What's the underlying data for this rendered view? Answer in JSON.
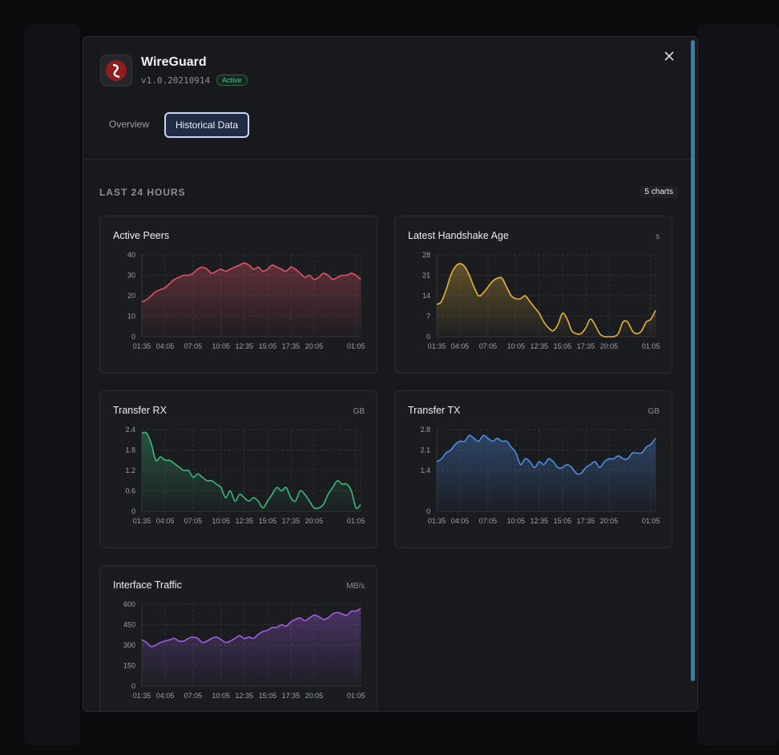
{
  "header": {
    "title": "WireGuard",
    "version": "v1.0.20210914",
    "status": "Active"
  },
  "tabs": [
    "Overview",
    "Historical Data"
  ],
  "section": {
    "title": "LAST 24 HOURS",
    "count": "5 charts"
  },
  "chart_data": [
    {
      "type": "line",
      "title": "Active Peers",
      "color": "#e05563",
      "grid": true,
      "ylim": [
        0,
        40
      ],
      "yticks": [
        0,
        10,
        20,
        30,
        40
      ],
      "categories": [
        "01:35",
        null,
        null,
        null,
        null,
        "04:05",
        null,
        null,
        null,
        null,
        null,
        "07:05",
        null,
        null,
        null,
        null,
        null,
        "10:05",
        null,
        null,
        null,
        null,
        "12:35",
        null,
        null,
        null,
        null,
        "15:05",
        null,
        null,
        null,
        null,
        "17:35",
        null,
        null,
        null,
        null,
        "20:05",
        null,
        null,
        null,
        null,
        null,
        null,
        null,
        null,
        "01:05",
        null
      ],
      "values": [
        17,
        18,
        20,
        22,
        23,
        24,
        26,
        28,
        29,
        30,
        30,
        31,
        33,
        34,
        33,
        31,
        32,
        33,
        32,
        33,
        34,
        35,
        36,
        35,
        33,
        34,
        32,
        33,
        35,
        34,
        33,
        32,
        34,
        33,
        31,
        29,
        30,
        28,
        29,
        31,
        30,
        28,
        29,
        30,
        30,
        31,
        30,
        28
      ]
    },
    {
      "type": "line",
      "title": "Latest Handshake Age",
      "unit": "s",
      "color": "#e6b53a",
      "grid": true,
      "ylim": [
        0,
        28
      ],
      "yticks": [
        0,
        7,
        14,
        21,
        28
      ],
      "categories": [
        "01:35",
        null,
        null,
        null,
        null,
        "04:05",
        null,
        null,
        null,
        null,
        null,
        "07:05",
        null,
        null,
        null,
        null,
        null,
        "10:05",
        null,
        null,
        null,
        null,
        "12:35",
        null,
        null,
        null,
        null,
        "15:05",
        null,
        null,
        null,
        null,
        "17:35",
        null,
        null,
        null,
        null,
        "20:05",
        null,
        null,
        null,
        null,
        null,
        null,
        null,
        null,
        "01:05",
        null
      ],
      "values": [
        11,
        12,
        16,
        21,
        24,
        25,
        24,
        21,
        17,
        14,
        15,
        17,
        19,
        20,
        20,
        17,
        14,
        13,
        13,
        14,
        12,
        10,
        8,
        5,
        3,
        2,
        4,
        8,
        6,
        2,
        1,
        1,
        3,
        6,
        4,
        1,
        0,
        0,
        0,
        1,
        5,
        5,
        2,
        1,
        2,
        5,
        6,
        9
      ]
    },
    {
      "type": "line",
      "title": "Transfer RX",
      "unit": "GB",
      "color": "#3dba7a",
      "grid": true,
      "ylim": [
        0,
        2.4
      ],
      "yticks": [
        0,
        0.6,
        1.2,
        1.8,
        2.4
      ],
      "categories": [
        "01:35",
        null,
        null,
        null,
        null,
        "04:05",
        null,
        null,
        null,
        null,
        null,
        "07:05",
        null,
        null,
        null,
        null,
        null,
        "10:05",
        null,
        null,
        null,
        null,
        "12:35",
        null,
        null,
        null,
        null,
        "15:05",
        null,
        null,
        null,
        null,
        "17:35",
        null,
        null,
        null,
        null,
        "20:05",
        null,
        null,
        null,
        null,
        null,
        null,
        null,
        null,
        "01:05",
        null
      ],
      "values": [
        2.3,
        2.3,
        2.0,
        1.5,
        1.6,
        1.5,
        1.5,
        1.4,
        1.3,
        1.2,
        1.2,
        1.0,
        1.1,
        1.0,
        0.9,
        0.9,
        0.8,
        0.7,
        0.4,
        0.6,
        0.3,
        0.5,
        0.4,
        0.3,
        0.4,
        0.3,
        0.1,
        0.3,
        0.5,
        0.7,
        0.6,
        0.7,
        0.4,
        0.3,
        0.6,
        0.5,
        0.3,
        0.1,
        0.1,
        0.2,
        0.5,
        0.7,
        0.9,
        0.8,
        0.8,
        0.6,
        0.1,
        0.2
      ]
    },
    {
      "type": "line",
      "title": "Transfer TX",
      "unit": "GB",
      "color": "#4f8fe0",
      "grid": true,
      "ylim": [
        0,
        2.8
      ],
      "yticks": [
        0,
        1.4,
        2.1,
        2.8
      ],
      "categories": [
        "01:35",
        null,
        null,
        null,
        null,
        "04:05",
        null,
        null,
        null,
        null,
        null,
        "07:05",
        null,
        null,
        null,
        null,
        null,
        "10:05",
        null,
        null,
        null,
        null,
        "12:35",
        null,
        null,
        null,
        null,
        "15:05",
        null,
        null,
        null,
        null,
        "17:35",
        null,
        null,
        null,
        null,
        "20:05",
        null,
        null,
        null,
        null,
        null,
        null,
        null,
        null,
        "01:05",
        null
      ],
      "values": [
        1.7,
        1.8,
        2.0,
        2.1,
        2.3,
        2.4,
        2.4,
        2.6,
        2.5,
        2.4,
        2.6,
        2.5,
        2.4,
        2.5,
        2.4,
        2.4,
        2.2,
        2.0,
        1.6,
        1.8,
        1.7,
        1.5,
        1.7,
        1.6,
        1.8,
        1.7,
        1.5,
        1.5,
        1.6,
        1.5,
        1.3,
        1.3,
        1.5,
        1.6,
        1.7,
        1.5,
        1.7,
        1.8,
        1.8,
        1.9,
        1.8,
        1.8,
        2.0,
        2.0,
        2.0,
        2.2,
        2.3,
        2.5
      ]
    },
    {
      "type": "line",
      "title": "Interface Traffic",
      "unit": "MB/s",
      "color": "#a35ee0",
      "grid": true,
      "ylim": [
        0,
        600
      ],
      "yticks": [
        0,
        150,
        300,
        450,
        600
      ],
      "categories": [
        "01:35",
        null,
        null,
        null,
        null,
        "04:05",
        null,
        null,
        null,
        null,
        null,
        "07:05",
        null,
        null,
        null,
        null,
        null,
        "10:05",
        null,
        null,
        null,
        null,
        "12:35",
        null,
        null,
        null,
        null,
        "15:05",
        null,
        null,
        null,
        null,
        "17:35",
        null,
        null,
        null,
        null,
        "20:05",
        null,
        null,
        null,
        null,
        null,
        null,
        null,
        null,
        "01:05",
        null
      ],
      "values": [
        340,
        320,
        290,
        300,
        320,
        330,
        340,
        350,
        330,
        330,
        350,
        360,
        350,
        320,
        330,
        350,
        360,
        340,
        320,
        330,
        350,
        370,
        350,
        360,
        350,
        380,
        400,
        410,
        430,
        430,
        450,
        440,
        470,
        490,
        500,
        480,
        500,
        520,
        510,
        490,
        500,
        530,
        540,
        530,
        520,
        550,
        550,
        570
      ]
    }
  ]
}
